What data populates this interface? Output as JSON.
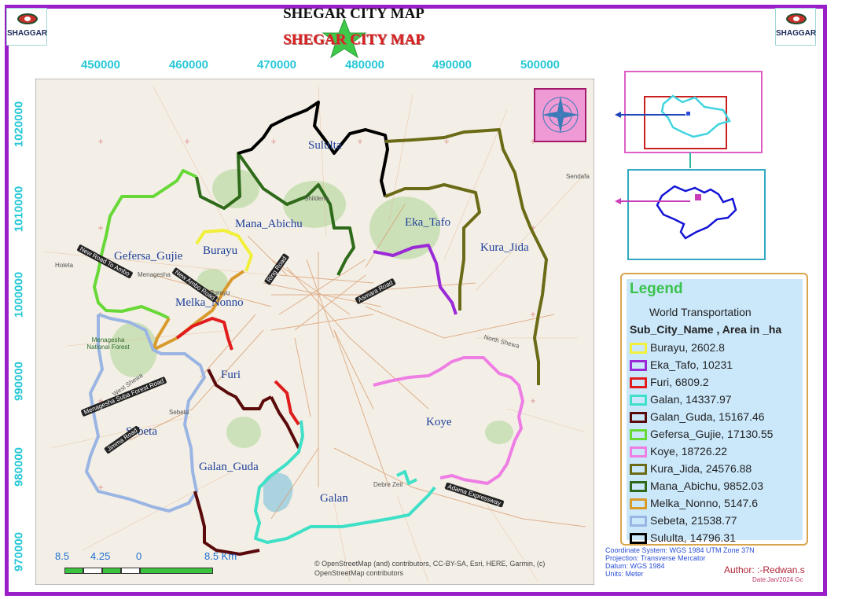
{
  "header": {
    "logo_text": "SHAGGAR",
    "title_black": "SHEGAR CITY MAP",
    "title_red": "SHEGAR CITY MAP"
  },
  "map": {
    "easting_ticks": [
      "450000",
      "460000",
      "470000",
      "480000",
      "490000",
      "500000"
    ],
    "northing_ticks": [
      "1020000",
      "1010000",
      "1000000",
      "990000",
      "980000",
      "970000"
    ],
    "districts": [
      {
        "name": "Sululta",
        "color": "#000000"
      },
      {
        "name": "Mana_Abichu",
        "color": "#2e6a1a"
      },
      {
        "name": "Eka_Tafo",
        "color": "#9a2ad6"
      },
      {
        "name": "Kura_Jida",
        "color": "#6b6b17"
      },
      {
        "name": "Gefersa_Gujie",
        "color": "#68d837"
      },
      {
        "name": "Burayu",
        "color": "#f2ef3a"
      },
      {
        "name": "Melka_Nonno",
        "color": "#d99a2c"
      },
      {
        "name": "Furi",
        "color": "#e01c1c"
      },
      {
        "name": "Sebeta",
        "color": "#9ab5e3"
      },
      {
        "name": "Galan_Guda",
        "color": "#5a0a0a"
      },
      {
        "name": "Koye",
        "color": "#ef7ee4"
      },
      {
        "name": "Galan",
        "color": "#3fe0c7"
      }
    ],
    "road_labels": [
      "New Road To Ambo",
      "New Ambo Road",
      "Ring Road",
      "Asmara Road",
      "Adama Expressway",
      "Jimma Road",
      "Menagesha Suba Forest Road",
      "West Shewa",
      "North Shewa"
    ],
    "place_labels": [
      "Holeta",
      "Menagesha",
      "Burayu",
      "Shildene",
      "Sendafa",
      "Debre Zeit",
      "Sebeta"
    ],
    "park_label": "Menagesha National Forest",
    "scale": {
      "labels": [
        "8.5",
        "4.25",
        "0",
        "8.5 Km"
      ]
    },
    "attribution": "© OpenStreetMap (and) contributors, CC-BY-SA, Esri, HERE, Garmin, (c) OpenStreetMap contributors"
  },
  "legend": {
    "title": "Legend",
    "layer": "World Transportation",
    "field": "Sub_City_Name , Area in _ha",
    "items": [
      {
        "label": "Burayu, 2602.8",
        "color": "#f2ef3a"
      },
      {
        "label": "Eka_Tafo, 10231",
        "color": "#9a2ad6"
      },
      {
        "label": "Furi, 6809.2",
        "color": "#e01c1c"
      },
      {
        "label": "Galan, 14337.97",
        "color": "#3fe0c7"
      },
      {
        "label": "Galan_Guda, 15167.46",
        "color": "#5a0a0a"
      },
      {
        "label": "Gefersa_Gujie, 17130.55",
        "color": "#68d837"
      },
      {
        "label": "Koye, 18726.22",
        "color": "#ef7ee4"
      },
      {
        "label": "Kura_Jida, 24576.88",
        "color": "#6b6b17"
      },
      {
        "label": "Mana_Abichu, 9852.03",
        "color": "#2e6a1a"
      },
      {
        "label": "Melka_Nonno, 5147.6",
        "color": "#d99a2c"
      },
      {
        "label": "Sebeta, 21538.77",
        "color": "#9ab5e3"
      },
      {
        "label": "Sululta, 14796.31",
        "color": "#000000"
      }
    ]
  },
  "info": {
    "coord_system": "Coordinate System: WGS 1984 UTM Zone 37N",
    "projection": "Projection: Transverse Mercator",
    "datum": "Datum: WGS 1984",
    "units": "Units: Meter",
    "author": "Author: :-Redwan.s",
    "date": "Date:Jan/2024 Gc"
  }
}
